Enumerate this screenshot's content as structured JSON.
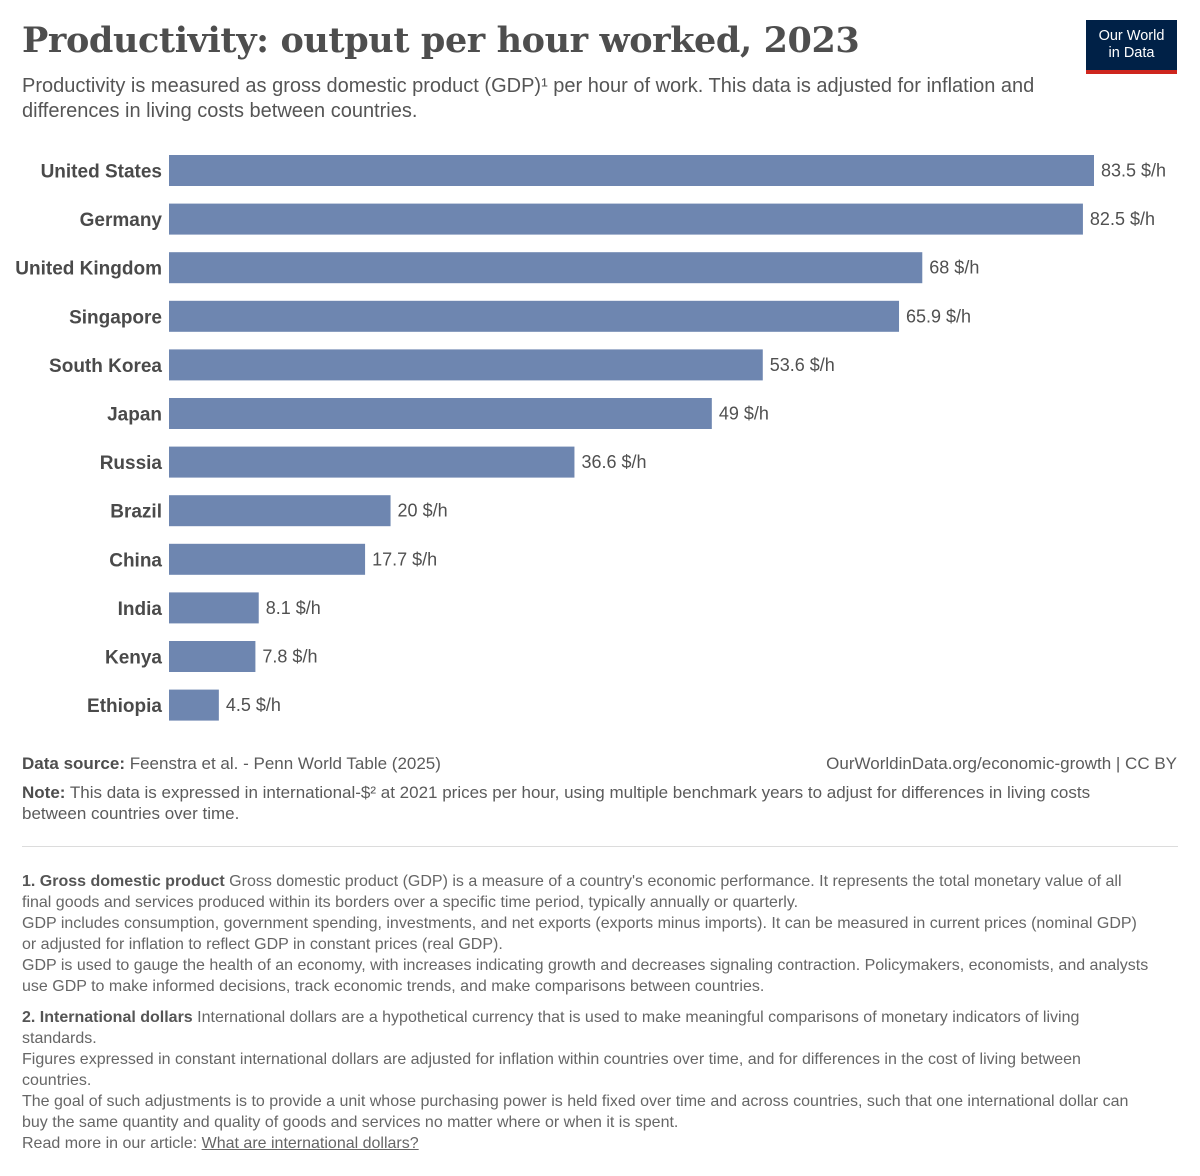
{
  "header": {
    "title": "Productivity: output per hour worked, 2023",
    "subtitle": "Productivity is measured as gross domestic product (GDP)¹ per hour of work. This data is adjusted for inflation and differences in living costs between countries.",
    "logo_line1": "Our World",
    "logo_line2": "in Data"
  },
  "colors": {
    "bar": "#6e86b0",
    "brand": "#002147",
    "brand_accent": "#ce261e"
  },
  "chart_data": {
    "type": "bar",
    "orientation": "horizontal",
    "title": "Productivity: output per hour worked, 2023",
    "unit": "$/h",
    "categories": [
      "United States",
      "Germany",
      "United Kingdom",
      "Singapore",
      "South Korea",
      "Japan",
      "Russia",
      "Brazil",
      "China",
      "India",
      "Kenya",
      "Ethiopia"
    ],
    "values": [
      83.5,
      82.5,
      68,
      65.9,
      53.6,
      49,
      36.6,
      20,
      17.7,
      8.1,
      7.8,
      4.5
    ],
    "value_labels": [
      "83.5 $/h",
      "82.5 $/h",
      "68 $/h",
      "65.9 $/h",
      "53.6 $/h",
      "49 $/h",
      "36.6 $/h",
      "20 $/h",
      "17.7 $/h",
      "8.1 $/h",
      "7.8 $/h",
      "4.5 $/h"
    ],
    "xlim": [
      0,
      83.5
    ],
    "xlabel": "",
    "ylabel": "",
    "grid": false
  },
  "footer": {
    "source_label": "Data source:",
    "source_text": "Feenstra et al. - Penn World Table (2025)",
    "url": "OurWorldinData.org/economic-growth | CC BY",
    "note_label": "Note:",
    "note_text": "This data is expressed in international-$² at 2021 prices per hour, using multiple benchmark years to adjust for differences in living costs between countries over time."
  },
  "footnotes": {
    "fn1_title": "1. Gross domestic product",
    "fn1_p1": "Gross domestic product (GDP) is a measure of a country's economic performance. It represents the total monetary value of all final goods and services produced within its borders over a specific time period, typically annually or quarterly.",
    "fn1_p2": "GDP includes consumption, government spending, investments, and net exports (exports minus imports). It can be measured in current prices (nominal GDP) or adjusted for inflation to reflect GDP in constant prices (real GDP).",
    "fn1_p3": "GDP is used to gauge the health of an economy, with increases indicating growth and decreases signaling contraction. Policymakers, economists, and analysts use GDP to make informed decisions, track economic trends, and make comparisons between countries.",
    "fn2_title": "2. International dollars",
    "fn2_p1": "International dollars are a hypothetical currency that is used to make meaningful comparisons of monetary indicators of living standards.",
    "fn2_p2": "Figures expressed in constant international dollars are adjusted for inflation within countries over time, and for differences in the cost of living between countries.",
    "fn2_p3": "The goal of such adjustments is to provide a unit whose purchasing power is held fixed over time and across countries, such that one international dollar can buy the same quantity and quality of goods and services no matter where or when it is spent.",
    "read_more": "Read more in our article:",
    "read_more_link": "What are international dollars?"
  }
}
